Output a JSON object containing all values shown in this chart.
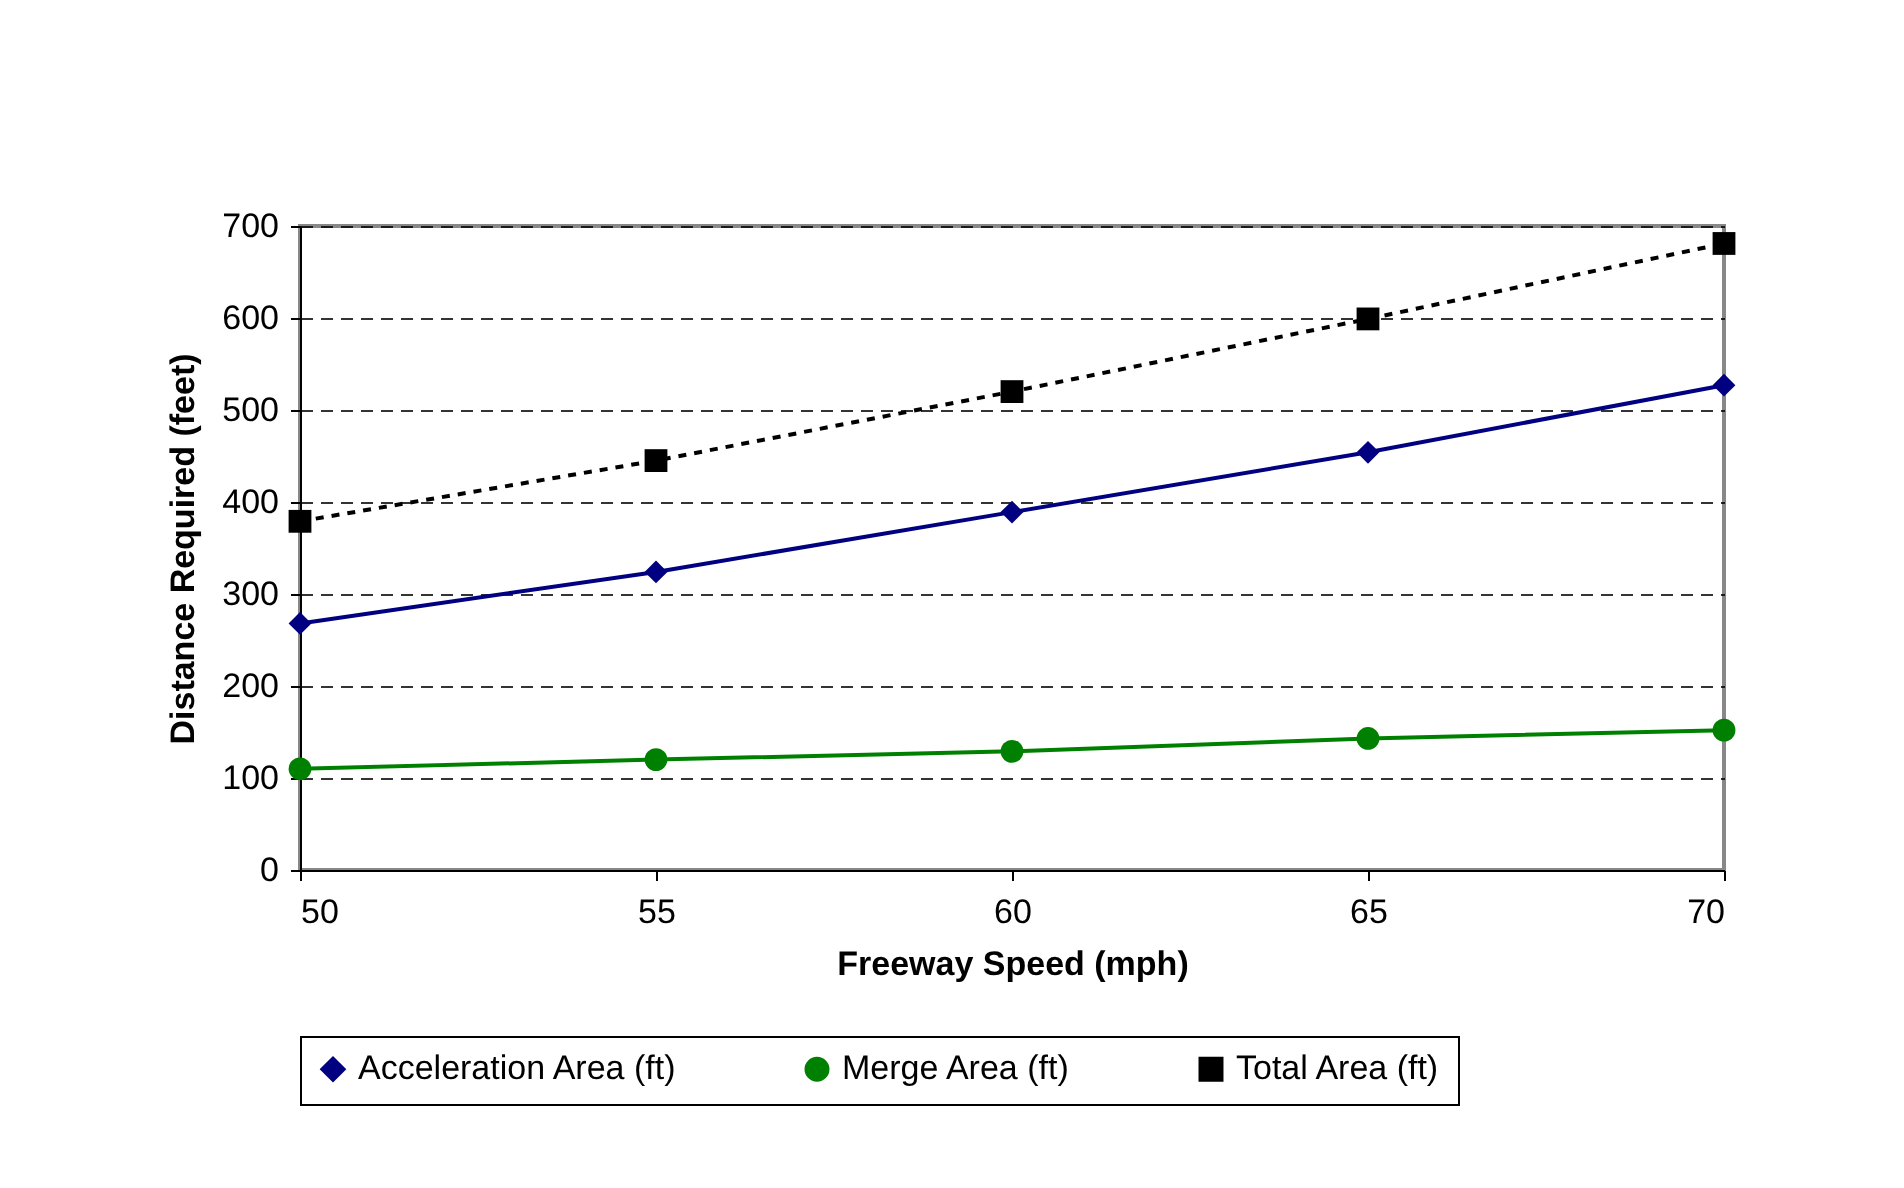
{
  "chart_data": {
    "type": "line",
    "xlabel": "Freeway Speed (mph)",
    "ylabel": "Distance Required (feet)",
    "x": [
      50,
      55,
      60,
      65,
      70
    ],
    "xlim": [
      50,
      70
    ],
    "xticks": [
      50,
      55,
      60,
      65,
      70
    ],
    "ylim": [
      0,
      700
    ],
    "yticks": [
      0,
      100,
      200,
      300,
      400,
      500,
      600,
      700
    ],
    "grid": "y",
    "legend": "bottom",
    "series": [
      {
        "name": "Acceleration Area (ft)",
        "color": "#000080",
        "marker": "diamond",
        "line_style": "solid",
        "values": [
          268,
          324,
          389,
          454,
          527
        ]
      },
      {
        "name": "Merge Area (ft)",
        "color": "#008000",
        "marker": "circle",
        "line_style": "solid",
        "values": [
          110,
          120,
          129,
          143,
          152
        ]
      },
      {
        "name": "Total Area (ft)",
        "color": "#000000",
        "marker": "square",
        "line_style": "dashed",
        "values": [
          379,
          445,
          520,
          599,
          681
        ]
      }
    ]
  }
}
